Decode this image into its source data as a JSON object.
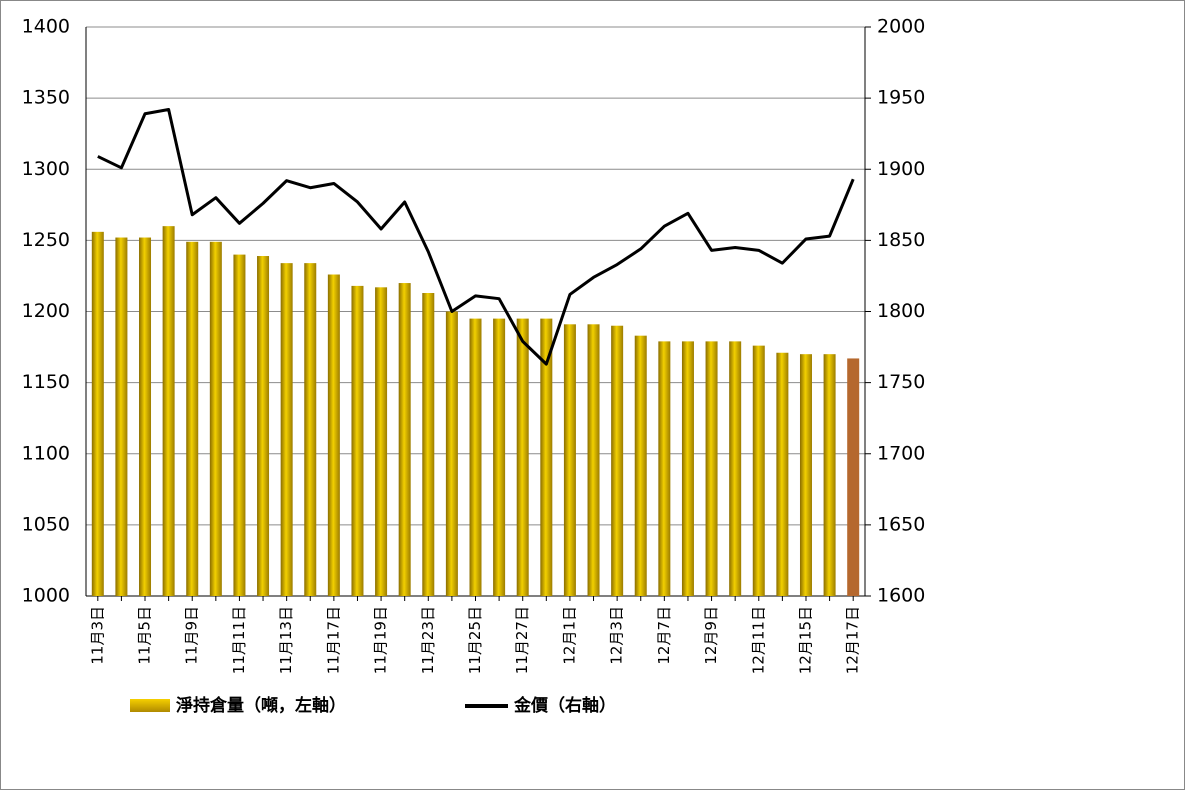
{
  "chart_data": {
    "type": "bar_line",
    "categories": [
      "11月3日",
      null,
      "11月5日",
      null,
      "11月9日",
      null,
      "11月11日",
      null,
      "11月13日",
      null,
      "11月17日",
      null,
      "11月19日",
      null,
      "11月23日",
      null,
      "11月25日",
      null,
      "11月27日",
      null,
      "12月1日",
      null,
      "12月3日",
      null,
      "12月7日",
      null,
      "12月9日",
      null,
      "12月11日",
      null,
      "12月15日",
      null,
      "12月17日"
    ],
    "series": [
      {
        "name": "淨持倉量（噸，左軸）",
        "color": "#c9a400",
        "last_color": "#b5682e",
        "values": [
          1256,
          1252,
          1252,
          1260,
          1249,
          1249,
          1240,
          1239,
          1234,
          1234,
          1226,
          1218,
          1217,
          1220,
          1213,
          1200,
          1195,
          1195,
          1195,
          1195,
          1191,
          1191,
          1190,
          1183,
          1179,
          1179,
          1179,
          1179,
          1176,
          1171,
          1170,
          1170,
          1167
        ]
      },
      {
        "name": "金價（右軸）",
        "color": "#000000",
        "axis": "y2",
        "values": [
          1909,
          1901,
          1939,
          1942,
          1868,
          1880,
          1862,
          1876,
          1892,
          1887,
          1890,
          1877,
          1858,
          1877,
          1842,
          1800,
          1811,
          1809,
          1779,
          1763,
          1812,
          1824,
          1833,
          1844,
          1860,
          1869,
          1843,
          1845,
          1843,
          1834,
          1851,
          1853,
          1893
        ]
      }
    ],
    "ylim": [
      1000,
      1400
    ],
    "yticks": [
      1000,
      1050,
      1100,
      1150,
      1200,
      1250,
      1300,
      1350,
      1400
    ],
    "y2lim": [
      1600,
      2000
    ],
    "y2ticks": [
      1600,
      1650,
      1700,
      1750,
      1800,
      1850,
      1900,
      1950,
      2000
    ],
    "grid": true
  }
}
